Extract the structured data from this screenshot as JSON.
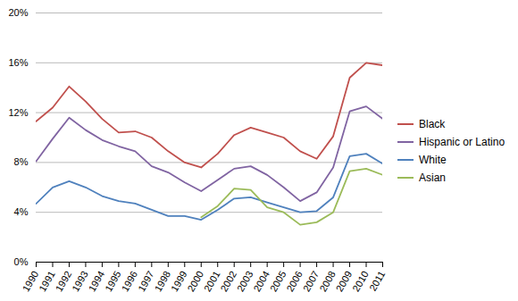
{
  "chart_data": {
    "type": "line",
    "x": [
      1990,
      1991,
      1992,
      1993,
      1994,
      1995,
      1996,
      1997,
      1998,
      1999,
      2000,
      2001,
      2002,
      2003,
      2004,
      2005,
      2006,
      2007,
      2008,
      2009,
      2010,
      2011
    ],
    "series": [
      {
        "name": "Black",
        "color": "#C0504D",
        "values": [
          11.3,
          12.4,
          14.1,
          12.9,
          11.5,
          10.4,
          10.5,
          10.0,
          8.9,
          8.0,
          7.6,
          8.7,
          10.2,
          10.8,
          10.4,
          10.0,
          8.9,
          8.3,
          10.1,
          14.8,
          16.0,
          15.8
        ]
      },
      {
        "name": "Hispanic or Latino",
        "color": "#8064A2",
        "values": [
          8.1,
          9.9,
          11.6,
          10.6,
          9.8,
          9.3,
          8.9,
          7.7,
          7.2,
          6.4,
          5.7,
          6.6,
          7.5,
          7.7,
          7.0,
          6.0,
          4.9,
          5.6,
          7.6,
          12.1,
          12.5,
          11.5
        ]
      },
      {
        "name": "White",
        "color": "#4F81BD",
        "values": [
          4.7,
          6.0,
          6.5,
          6.0,
          5.3,
          4.9,
          4.7,
          4.2,
          3.7,
          3.7,
          3.4,
          4.2,
          5.1,
          5.2,
          4.8,
          4.4,
          4.0,
          4.1,
          5.2,
          8.5,
          8.7,
          7.9
        ]
      },
      {
        "name": "Asian",
        "color": "#9BBB59",
        "values": [
          null,
          null,
          null,
          null,
          null,
          null,
          null,
          null,
          null,
          null,
          3.6,
          4.5,
          5.9,
          5.8,
          4.4,
          4.0,
          3.0,
          3.2,
          4.0,
          7.3,
          7.5,
          7.0
        ]
      }
    ],
    "xlim": [
      1990,
      2011
    ],
    "xticks": [
      1990,
      1991,
      1992,
      1993,
      1994,
      1995,
      1996,
      1997,
      1998,
      1999,
      2000,
      2001,
      2002,
      2003,
      2004,
      2005,
      2006,
      2007,
      2008,
      2009,
      2010,
      2011
    ],
    "ylim": [
      0,
      20
    ],
    "yticks": [
      {
        "value": 0,
        "label": "0%"
      },
      {
        "value": 4,
        "label": "4%"
      },
      {
        "value": 8,
        "label": "8%"
      },
      {
        "value": 12,
        "label": "12%"
      },
      {
        "value": 16,
        "label": "16%"
      },
      {
        "value": 20,
        "label": "20%"
      }
    ],
    "grid": true,
    "legend": "right"
  }
}
